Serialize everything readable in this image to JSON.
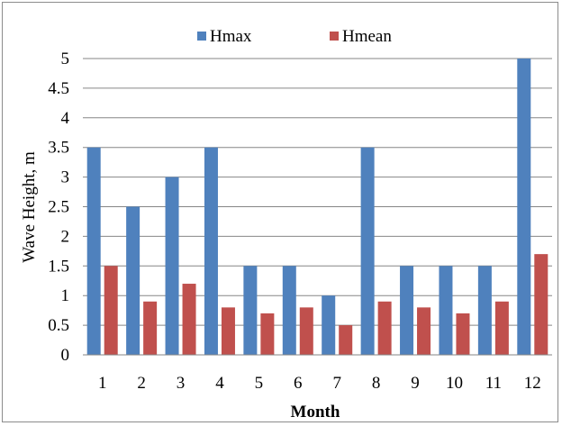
{
  "chart_data": {
    "type": "bar",
    "categories": [
      "1",
      "2",
      "3",
      "4",
      "5",
      "6",
      "7",
      "8",
      "9",
      "10",
      "11",
      "12"
    ],
    "series": [
      {
        "name": "Hmax",
        "color": "#4f81bd",
        "values": [
          3.5,
          2.5,
          3.0,
          3.5,
          1.5,
          1.5,
          1.0,
          3.5,
          1.5,
          1.5,
          1.5,
          5.0
        ]
      },
      {
        "name": "Hmean",
        "color": "#c0504d",
        "values": [
          1.5,
          0.9,
          1.2,
          0.8,
          0.7,
          0.8,
          0.5,
          0.9,
          0.8,
          0.7,
          0.9,
          1.7
        ]
      }
    ],
    "xlabel": "Month",
    "ylabel": "Wave Height, m",
    "ylim": [
      0,
      5
    ],
    "yticks": [
      "0",
      "0.5",
      "1",
      "1.5",
      "2",
      "2.5",
      "3",
      "3.5",
      "4",
      "4.5",
      "5"
    ],
    "ytick_values": [
      0,
      0.5,
      1,
      1.5,
      2,
      2.5,
      3,
      3.5,
      4,
      4.5,
      5
    ],
    "grid": true,
    "legend_position": "top"
  }
}
